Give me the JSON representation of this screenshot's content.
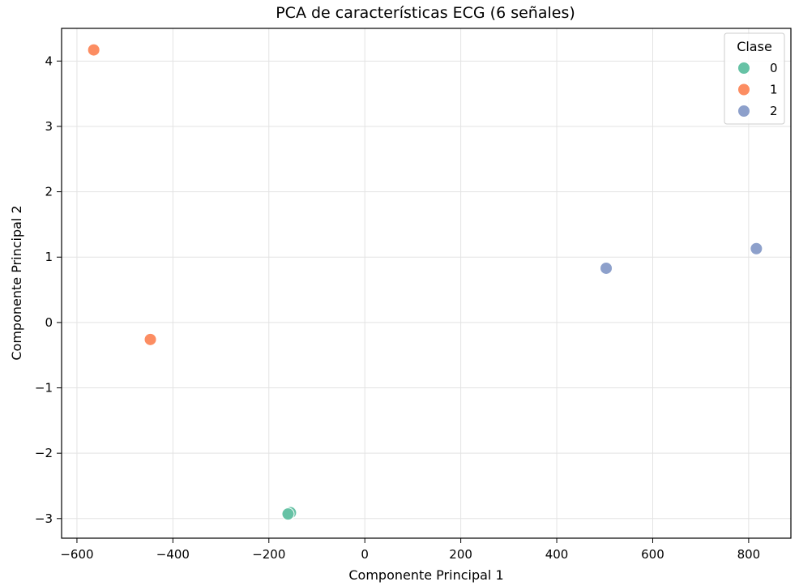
{
  "chart_data": {
    "type": "scatter",
    "title": "PCA de características ECG (6 señales)",
    "xlabel": "Componente Principal 1",
    "ylabel": "Componente Principal 2",
    "xlim": [
      -632,
      888
    ],
    "ylim": [
      -3.3,
      4.5
    ],
    "xticks": [
      -600,
      -400,
      -200,
      0,
      200,
      400,
      600,
      800
    ],
    "yticks": [
      -3,
      -2,
      -1,
      0,
      1,
      2,
      3,
      4
    ],
    "xtick_labels": [
      "−600",
      "−400",
      "−200",
      "0",
      "200",
      "400",
      "600",
      "800"
    ],
    "ytick_labels": [
      "−3",
      "−2",
      "−1",
      "0",
      "1",
      "2",
      "3",
      "4"
    ],
    "grid": true,
    "legend": {
      "title": "Clase",
      "placement": "top-right"
    },
    "series": [
      {
        "name": "0",
        "color": "#66c2a5",
        "points": [
          [
            -155,
            -2.91
          ],
          [
            -160,
            -2.93
          ]
        ]
      },
      {
        "name": "1",
        "color": "#fc8d62",
        "points": [
          [
            -565,
            4.17
          ],
          [
            -447,
            -0.26
          ]
        ]
      },
      {
        "name": "2",
        "color": "#8da0cb",
        "points": [
          [
            503,
            0.83
          ],
          [
            816,
            1.13
          ]
        ]
      }
    ]
  }
}
